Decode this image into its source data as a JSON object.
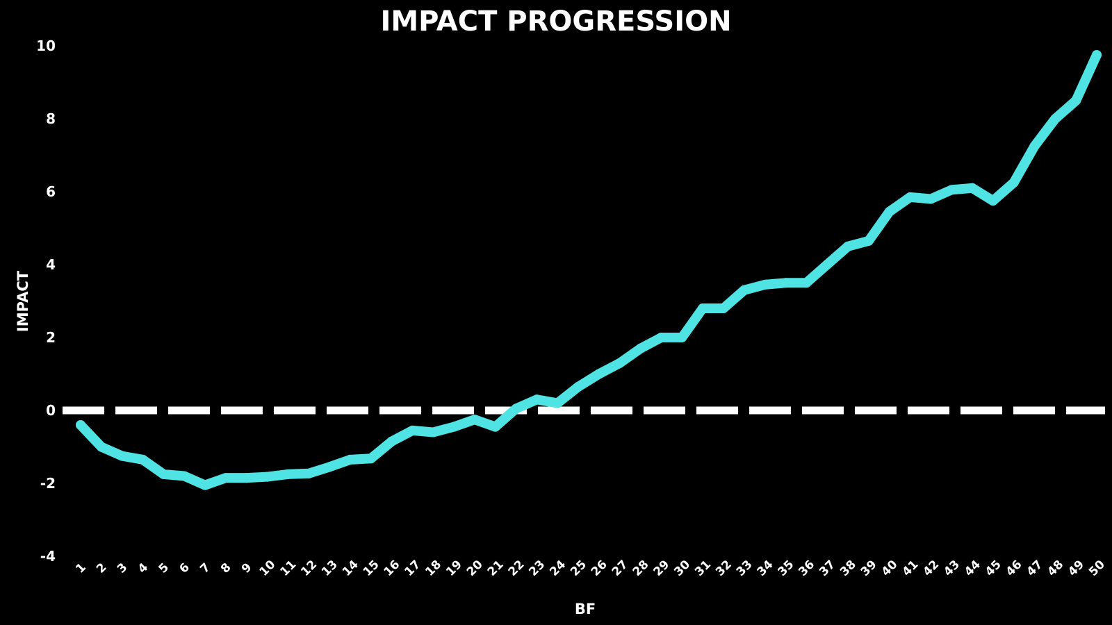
{
  "chart_data": {
    "type": "line",
    "title": "IMPACT PROGRESSION",
    "xlabel": "BF",
    "ylabel": "IMPACT",
    "x": [
      1,
      2,
      3,
      4,
      5,
      6,
      7,
      8,
      9,
      10,
      11,
      12,
      13,
      14,
      15,
      16,
      17,
      18,
      19,
      20,
      21,
      22,
      23,
      24,
      25,
      26,
      27,
      28,
      29,
      30,
      31,
      32,
      33,
      34,
      35,
      36,
      37,
      38,
      39,
      40,
      41,
      42,
      43,
      44,
      45,
      46,
      47,
      48,
      49,
      50
    ],
    "y": [
      -0.4,
      -1.0,
      -1.25,
      -1.35,
      -1.75,
      -1.8,
      -2.05,
      -1.85,
      -1.85,
      -1.82,
      -1.75,
      -1.73,
      -1.55,
      -1.35,
      -1.32,
      -0.85,
      -0.55,
      -0.6,
      -0.45,
      -0.25,
      -0.45,
      0.05,
      0.3,
      0.2,
      0.65,
      1.0,
      1.3,
      1.7,
      2.0,
      2.0,
      2.8,
      2.8,
      3.3,
      3.45,
      3.5,
      3.5,
      4.0,
      4.5,
      4.65,
      5.45,
      5.85,
      5.8,
      6.05,
      6.1,
      5.75,
      6.25,
      7.25,
      8.0,
      8.5,
      9.75
    ],
    "ylim": [
      -4,
      10
    ],
    "yticks": [
      "10",
      "8",
      "6",
      "4",
      "2",
      "0",
      "-2",
      "-4"
    ],
    "reference_line": {
      "y": 0,
      "style": "dashed"
    },
    "series": [
      {
        "values": [
          -0.4,
          -1.0,
          -1.25,
          -1.35,
          -1.75,
          -1.8,
          -2.05,
          -1.85,
          -1.85,
          -1.82,
          -1.75,
          -1.73,
          -1.55,
          -1.35,
          -1.32,
          -0.85,
          -0.55,
          -0.6,
          -0.45,
          -0.25,
          -0.45,
          0.05,
          0.3,
          0.2,
          0.65,
          1.0,
          1.3,
          1.7,
          2.0,
          2.0,
          2.8,
          2.8,
          3.3,
          3.45,
          3.5,
          3.5,
          4.0,
          4.5,
          4.65,
          5.45,
          5.85,
          5.8,
          6.05,
          6.1,
          5.75,
          6.25,
          7.25,
          8.0,
          8.5,
          9.75
        ]
      }
    ],
    "grid": false,
    "colors": {
      "background": "#000000",
      "line": "#4FE3E3",
      "reference": "#FFFFFF",
      "text": "#FFFFFF"
    }
  }
}
